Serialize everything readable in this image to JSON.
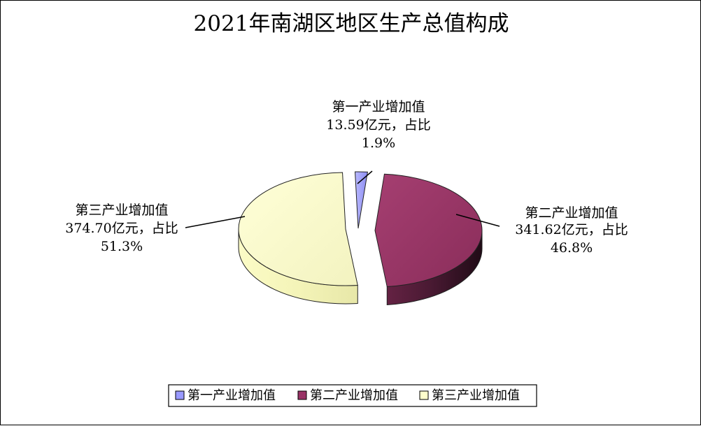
{
  "chart_data": {
    "type": "pie",
    "title": "2021年南湖区地区生产总值构成",
    "unit": "亿元",
    "series": [
      {
        "name": "第一产业增加值",
        "value": 13.59,
        "percent": 1.9,
        "label_line1": "第一产业增加值",
        "label_line2": "13.59亿元，占比",
        "label_line3": "1.9%",
        "color": "#9999ff"
      },
      {
        "name": "第二产业增加值",
        "value": 341.62,
        "percent": 46.8,
        "label_line1": "第二产业增加值",
        "label_line2": "341.62亿元，占比",
        "label_line3": "46.8%",
        "color": "#993366"
      },
      {
        "name": "第三产业增加值",
        "value": 374.7,
        "percent": 51.3,
        "label_line1": "第三产业增加值",
        "label_line2": "374.70亿元，占比",
        "label_line3": "51.3%",
        "color": "#ffffcc"
      }
    ],
    "legend_position": "bottom",
    "style": "exploded 3D pie"
  }
}
